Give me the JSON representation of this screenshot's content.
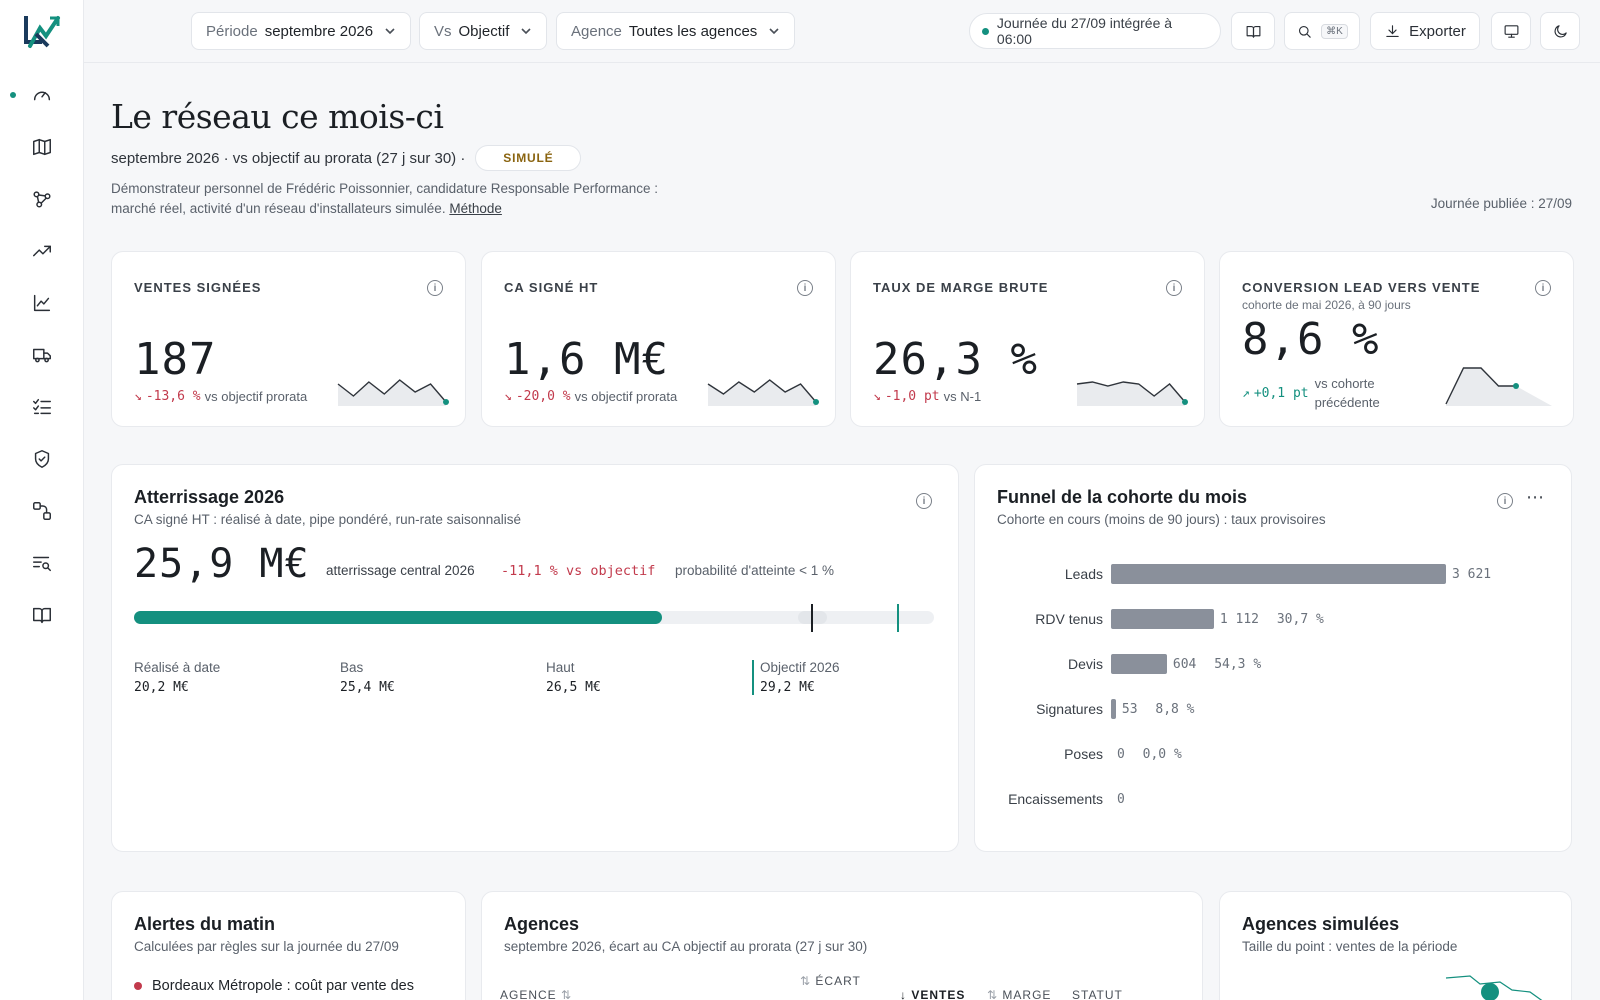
{
  "nav": {
    "items": [
      {
        "name": "dashboard"
      },
      {
        "name": "map"
      },
      {
        "name": "network"
      },
      {
        "name": "trend"
      },
      {
        "name": "chart"
      },
      {
        "name": "truck"
      },
      {
        "name": "checklist"
      },
      {
        "name": "shield"
      },
      {
        "name": "flow"
      },
      {
        "name": "search-list"
      },
      {
        "name": "book"
      }
    ]
  },
  "topbar": {
    "filters": [
      {
        "key": "Période",
        "value": "septembre 2026"
      },
      {
        "key": "Vs",
        "value": "Objectif"
      },
      {
        "key": "Agence",
        "value": "Toutes les agences"
      }
    ],
    "status": "Journée du 27/09 intégrée à 06:00",
    "shortcut": "⌘K",
    "export_label": "Exporter"
  },
  "header": {
    "title": "Le réseau ce mois-ci",
    "subline_a": "septembre 2026 · vs objectif au prorata (27 j sur 30) ·",
    "badge": "SIMULÉ",
    "description": "Démonstrateur personnel de Frédéric Poissonnier, candidature Responsable Performance : marché réel, activité d'un réseau d'installateurs simulée.",
    "method_link": "Méthode",
    "published": "Journée publiée : 27/09"
  },
  "kpis": [
    {
      "label": "VENTES SIGNÉES",
      "sub": "",
      "value": "187",
      "delta_arrow": "↘",
      "delta": "-13,6 %",
      "delta_sign": "neg",
      "vs": "vs objectif prorata",
      "spark": [
        0.55,
        0.25,
        0.6,
        0.3,
        0.65,
        0.35,
        0.55,
        0.1
      ],
      "spark_color": "#14907f"
    },
    {
      "label": "CA SIGNÉ HT",
      "sub": "",
      "value": "1,6 M€",
      "delta_arrow": "↘",
      "delta": "-20,0 %",
      "delta_sign": "neg",
      "vs": "vs objectif prorata",
      "spark": [
        0.55,
        0.3,
        0.6,
        0.35,
        0.65,
        0.35,
        0.55,
        0.1
      ],
      "spark_color": "#14907f"
    },
    {
      "label": "TAUX DE MARGE BRUTE",
      "sub": "",
      "value": "26,3 %",
      "delta_arrow": "↘",
      "delta": "-1,0 pt",
      "delta_sign": "neg",
      "vs": "vs N-1",
      "spark": [
        0.55,
        0.6,
        0.5,
        0.6,
        0.55,
        0.25,
        0.55,
        0.1
      ],
      "spark_color": "#14907f"
    },
    {
      "label": "CONVERSION LEAD VERS VENTE",
      "sub": "cohorte de mai 2026, à 90 jours",
      "value": "8,6 %",
      "delta_arrow": "↗",
      "delta": "+0,1 pt",
      "delta_sign": "pos",
      "vs": "vs cohorte précédente",
      "spark": [
        0.05,
        0.95,
        0.95,
        0.5,
        0.5
      ],
      "spark_color": "#14907f"
    }
  ],
  "landing": {
    "title": "Atterrissage 2026",
    "subtitle": "CA signé HT : réalisé à date, pipe pondéré, run-rate saisonnalisé",
    "value": "25,9 M€",
    "value_caption": "atterrissage central 2026",
    "vs_objective": "-11,1 % vs objectif",
    "probability": "probabilité d'atteinte < 1 %",
    "progress": {
      "realised": 20.2,
      "low": 25.4,
      "central": 25.9,
      "high": 26.5,
      "objective": 29.2,
      "max": 30.6
    },
    "legend": [
      {
        "label": "Réalisé à date",
        "value": "20,2 M€"
      },
      {
        "label": "Bas",
        "value": "25,4 M€"
      },
      {
        "label": "Haut",
        "value": "26,5 M€"
      },
      {
        "label": "Objectif 2026",
        "value": "29,2 M€"
      }
    ]
  },
  "funnel": {
    "title": "Funnel de la cohorte du mois",
    "subtitle": "Cohorte en cours (moins de 90 jours) : taux provisoires",
    "max": 3621,
    "steps": [
      {
        "label": "Leads",
        "count": 3621,
        "count_label": "3 621",
        "rate": ""
      },
      {
        "label": "RDV tenus",
        "count": 1112,
        "count_label": "1 112",
        "rate": "30,7 %"
      },
      {
        "label": "Devis",
        "count": 604,
        "count_label": "604",
        "rate": "54,3 %"
      },
      {
        "label": "Signatures",
        "count": 53,
        "count_label": "53",
        "rate": "8,8 %"
      },
      {
        "label": "Poses",
        "count": 0,
        "count_label": "0",
        "rate": "0,0 %"
      },
      {
        "label": "Encaissements",
        "count": 0,
        "count_label": "0",
        "rate": ""
      }
    ]
  },
  "alerts": {
    "title": "Alertes du matin",
    "subtitle": "Calculées par règles sur la journée du 27/09",
    "first_item": "Bordeaux Métropole : coût par vente des"
  },
  "agencies": {
    "title": "Agences",
    "subtitle": "septembre 2026, écart au CA objectif au prorata (27 j sur 30)",
    "headers": [
      "AGENCE",
      "ÉCART",
      "VENTES",
      "MARGE",
      "STATUT"
    ]
  },
  "sim_agencies": {
    "title": "Agences simulées",
    "subtitle": "Taille du point : ventes de la période"
  }
}
